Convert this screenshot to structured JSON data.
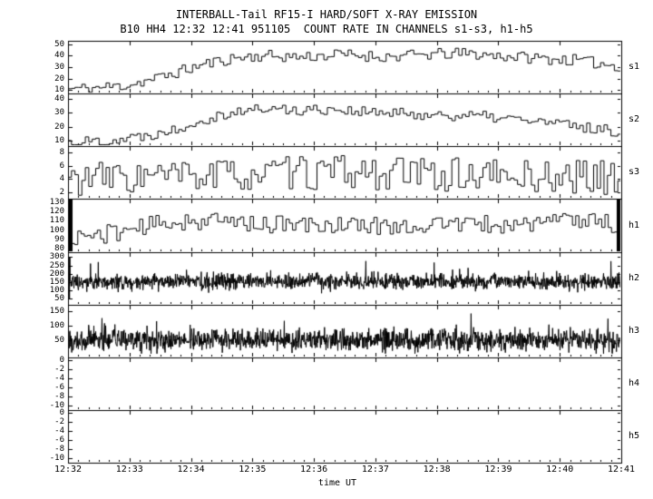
{
  "chart_data": {
    "type": "line",
    "title": "INTERBALL-Tail RF15-I HARD/SOFT X-RAY EMISSION",
    "subtitle": "B10 HH4 12:32 12:41 951105  COUNT RATE IN CHANNELS s1-s3, h1-h5",
    "xlabel": "time UT",
    "x_ticks": [
      "12:32",
      "12:33",
      "12:34",
      "12:35",
      "12:36",
      "12:37",
      "12:38",
      "12:39",
      "12:40",
      "12:41"
    ],
    "x_range": [
      "12:32",
      "12:41"
    ],
    "grid": false,
    "legend": "none",
    "panels": [
      {
        "name": "s1",
        "style": "steps",
        "ylim": [
          7,
          53
        ],
        "yticks": [
          50,
          40,
          30,
          20,
          10
        ],
        "bins": 160,
        "seed": 11,
        "noise": 5,
        "clamp": [
          8,
          52
        ],
        "trend": [
          [
            0,
            11
          ],
          [
            0.05,
            12
          ],
          [
            0.1,
            14
          ],
          [
            0.15,
            19
          ],
          [
            0.2,
            26
          ],
          [
            0.25,
            33
          ],
          [
            0.3,
            38
          ],
          [
            0.35,
            40
          ],
          [
            0.42,
            39
          ],
          [
            0.5,
            41
          ],
          [
            0.58,
            39
          ],
          [
            0.65,
            41
          ],
          [
            0.72,
            42
          ],
          [
            0.78,
            40
          ],
          [
            0.85,
            38
          ],
          [
            0.92,
            36
          ],
          [
            1,
            31
          ]
        ]
      },
      {
        "name": "s2",
        "style": "steps",
        "ylim": [
          6,
          44
        ],
        "yticks": [
          40,
          30,
          20,
          10
        ],
        "bins": 160,
        "seed": 22,
        "noise": 4,
        "clamp": [
          7,
          43
        ],
        "trend": [
          [
            0,
            9
          ],
          [
            0.07,
            10
          ],
          [
            0.13,
            13
          ],
          [
            0.19,
            18
          ],
          [
            0.24,
            25
          ],
          [
            0.29,
            30
          ],
          [
            0.35,
            33
          ],
          [
            0.42,
            32
          ],
          [
            0.48,
            33
          ],
          [
            0.55,
            30
          ],
          [
            0.63,
            29
          ],
          [
            0.72,
            28
          ],
          [
            0.8,
            26
          ],
          [
            0.87,
            23
          ],
          [
            0.93,
            20
          ],
          [
            1,
            16
          ]
        ]
      },
      {
        "name": "s3",
        "style": "steps",
        "ylim": [
          1,
          9
        ],
        "yticks": [
          8,
          6,
          4,
          2
        ],
        "bins": 160,
        "seed": 33,
        "noise": 2.6,
        "clamp": [
          1.3,
          8.7
        ],
        "trend": [
          [
            0,
            4
          ],
          [
            0.25,
            4.5
          ],
          [
            0.5,
            5
          ],
          [
            0.75,
            4.5
          ],
          [
            1,
            4.2
          ]
        ]
      },
      {
        "name": "h1",
        "style": "steps",
        "ylim": [
          76,
          134
        ],
        "yticks": [
          130,
          120,
          110,
          100,
          90,
          80
        ],
        "bins": 170,
        "seed": 44,
        "noise": 10,
        "clamp": [
          78,
          132
        ],
        "edge_bars": true,
        "trend": [
          [
            0,
            92
          ],
          [
            0.06,
            95
          ],
          [
            0.12,
            102
          ],
          [
            0.2,
            110
          ],
          [
            0.3,
            109
          ],
          [
            0.4,
            105
          ],
          [
            0.5,
            106
          ],
          [
            0.6,
            104
          ],
          [
            0.7,
            107
          ],
          [
            0.8,
            105
          ],
          [
            0.88,
            110
          ],
          [
            0.95,
            112
          ],
          [
            1,
            104
          ]
        ]
      },
      {
        "name": "h2",
        "style": "dense",
        "ylim": [
          10,
          330
        ],
        "yticks": [
          300,
          250,
          200,
          150,
          100,
          50
        ],
        "samples": 1500,
        "seed": 55,
        "sd": 24,
        "clamp": [
          45,
          302
        ],
        "spike_prob": 0.012,
        "spike_amp": 90,
        "edge_spike_left": true,
        "center": [
          [
            0,
            148
          ],
          [
            0.5,
            153
          ],
          [
            1,
            148
          ]
        ]
      },
      {
        "name": "h3",
        "style": "dense",
        "ylim": [
          -8,
          172
        ],
        "yticks": [
          150,
          100,
          50
        ],
        "samples": 1500,
        "seed": 66,
        "sd": 18,
        "clamp": [
          5,
          162
        ],
        "spike_prob": 0.01,
        "spike_amp": 55,
        "center": [
          [
            0,
            50
          ],
          [
            0.5,
            53
          ],
          [
            1,
            50
          ]
        ]
      },
      {
        "name": "h4",
        "style": "empty",
        "ylim": [
          -11,
          0.6
        ],
        "yticks": [
          0,
          -2,
          -4,
          -6,
          -8,
          -10
        ]
      },
      {
        "name": "h5",
        "style": "empty",
        "ylim": [
          -11,
          0.6
        ],
        "yticks": [
          0,
          -2,
          -4,
          -6,
          -8,
          -10
        ]
      }
    ]
  }
}
